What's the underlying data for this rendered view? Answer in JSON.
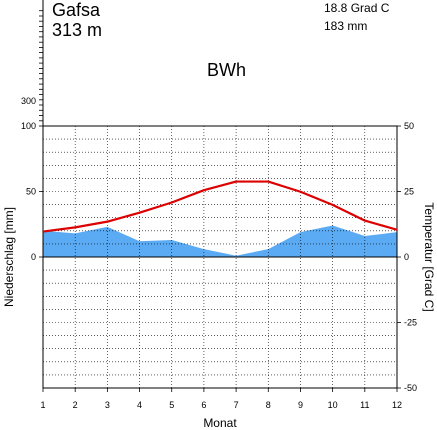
{
  "header": {
    "station": "Gafsa",
    "elevation": "313 m",
    "annual_mean_temp": "18.8 Grad C",
    "annual_precip": "183 mm",
    "climate_class": "BWh"
  },
  "colors": {
    "precipitation": "#5aaaf4",
    "temperature": "#dd0000",
    "grid": "#000000"
  },
  "chart_data": {
    "type": "area",
    "x": [
      1,
      2,
      3,
      4,
      5,
      6,
      7,
      8,
      9,
      10,
      11,
      12
    ],
    "xlabel": "Monat",
    "ylabel_left": "Niederschlag [mm]",
    "ylabel_right": "Temperatur [Grad C]",
    "ylim_precip": [
      -100,
      100
    ],
    "ylim_temp": [
      -50,
      50
    ],
    "precip_extra_ticks": [
      "300"
    ],
    "left_ticks": [
      "100",
      "50",
      "0"
    ],
    "right_ticks": [
      "50",
      "25",
      "0",
      "-25",
      "-50"
    ],
    "grid": true,
    "series": [
      {
        "name": "Niederschlag",
        "values": [
          20,
          18,
          23,
          12,
          13,
          6,
          1,
          6,
          19,
          24,
          16,
          19
        ]
      },
      {
        "name": "Temperatur",
        "values": [
          9.7,
          11.3,
          13.5,
          16.9,
          20.8,
          25.5,
          28.8,
          28.8,
          24.9,
          19.9,
          13.9,
          10.4
        ]
      }
    ]
  }
}
